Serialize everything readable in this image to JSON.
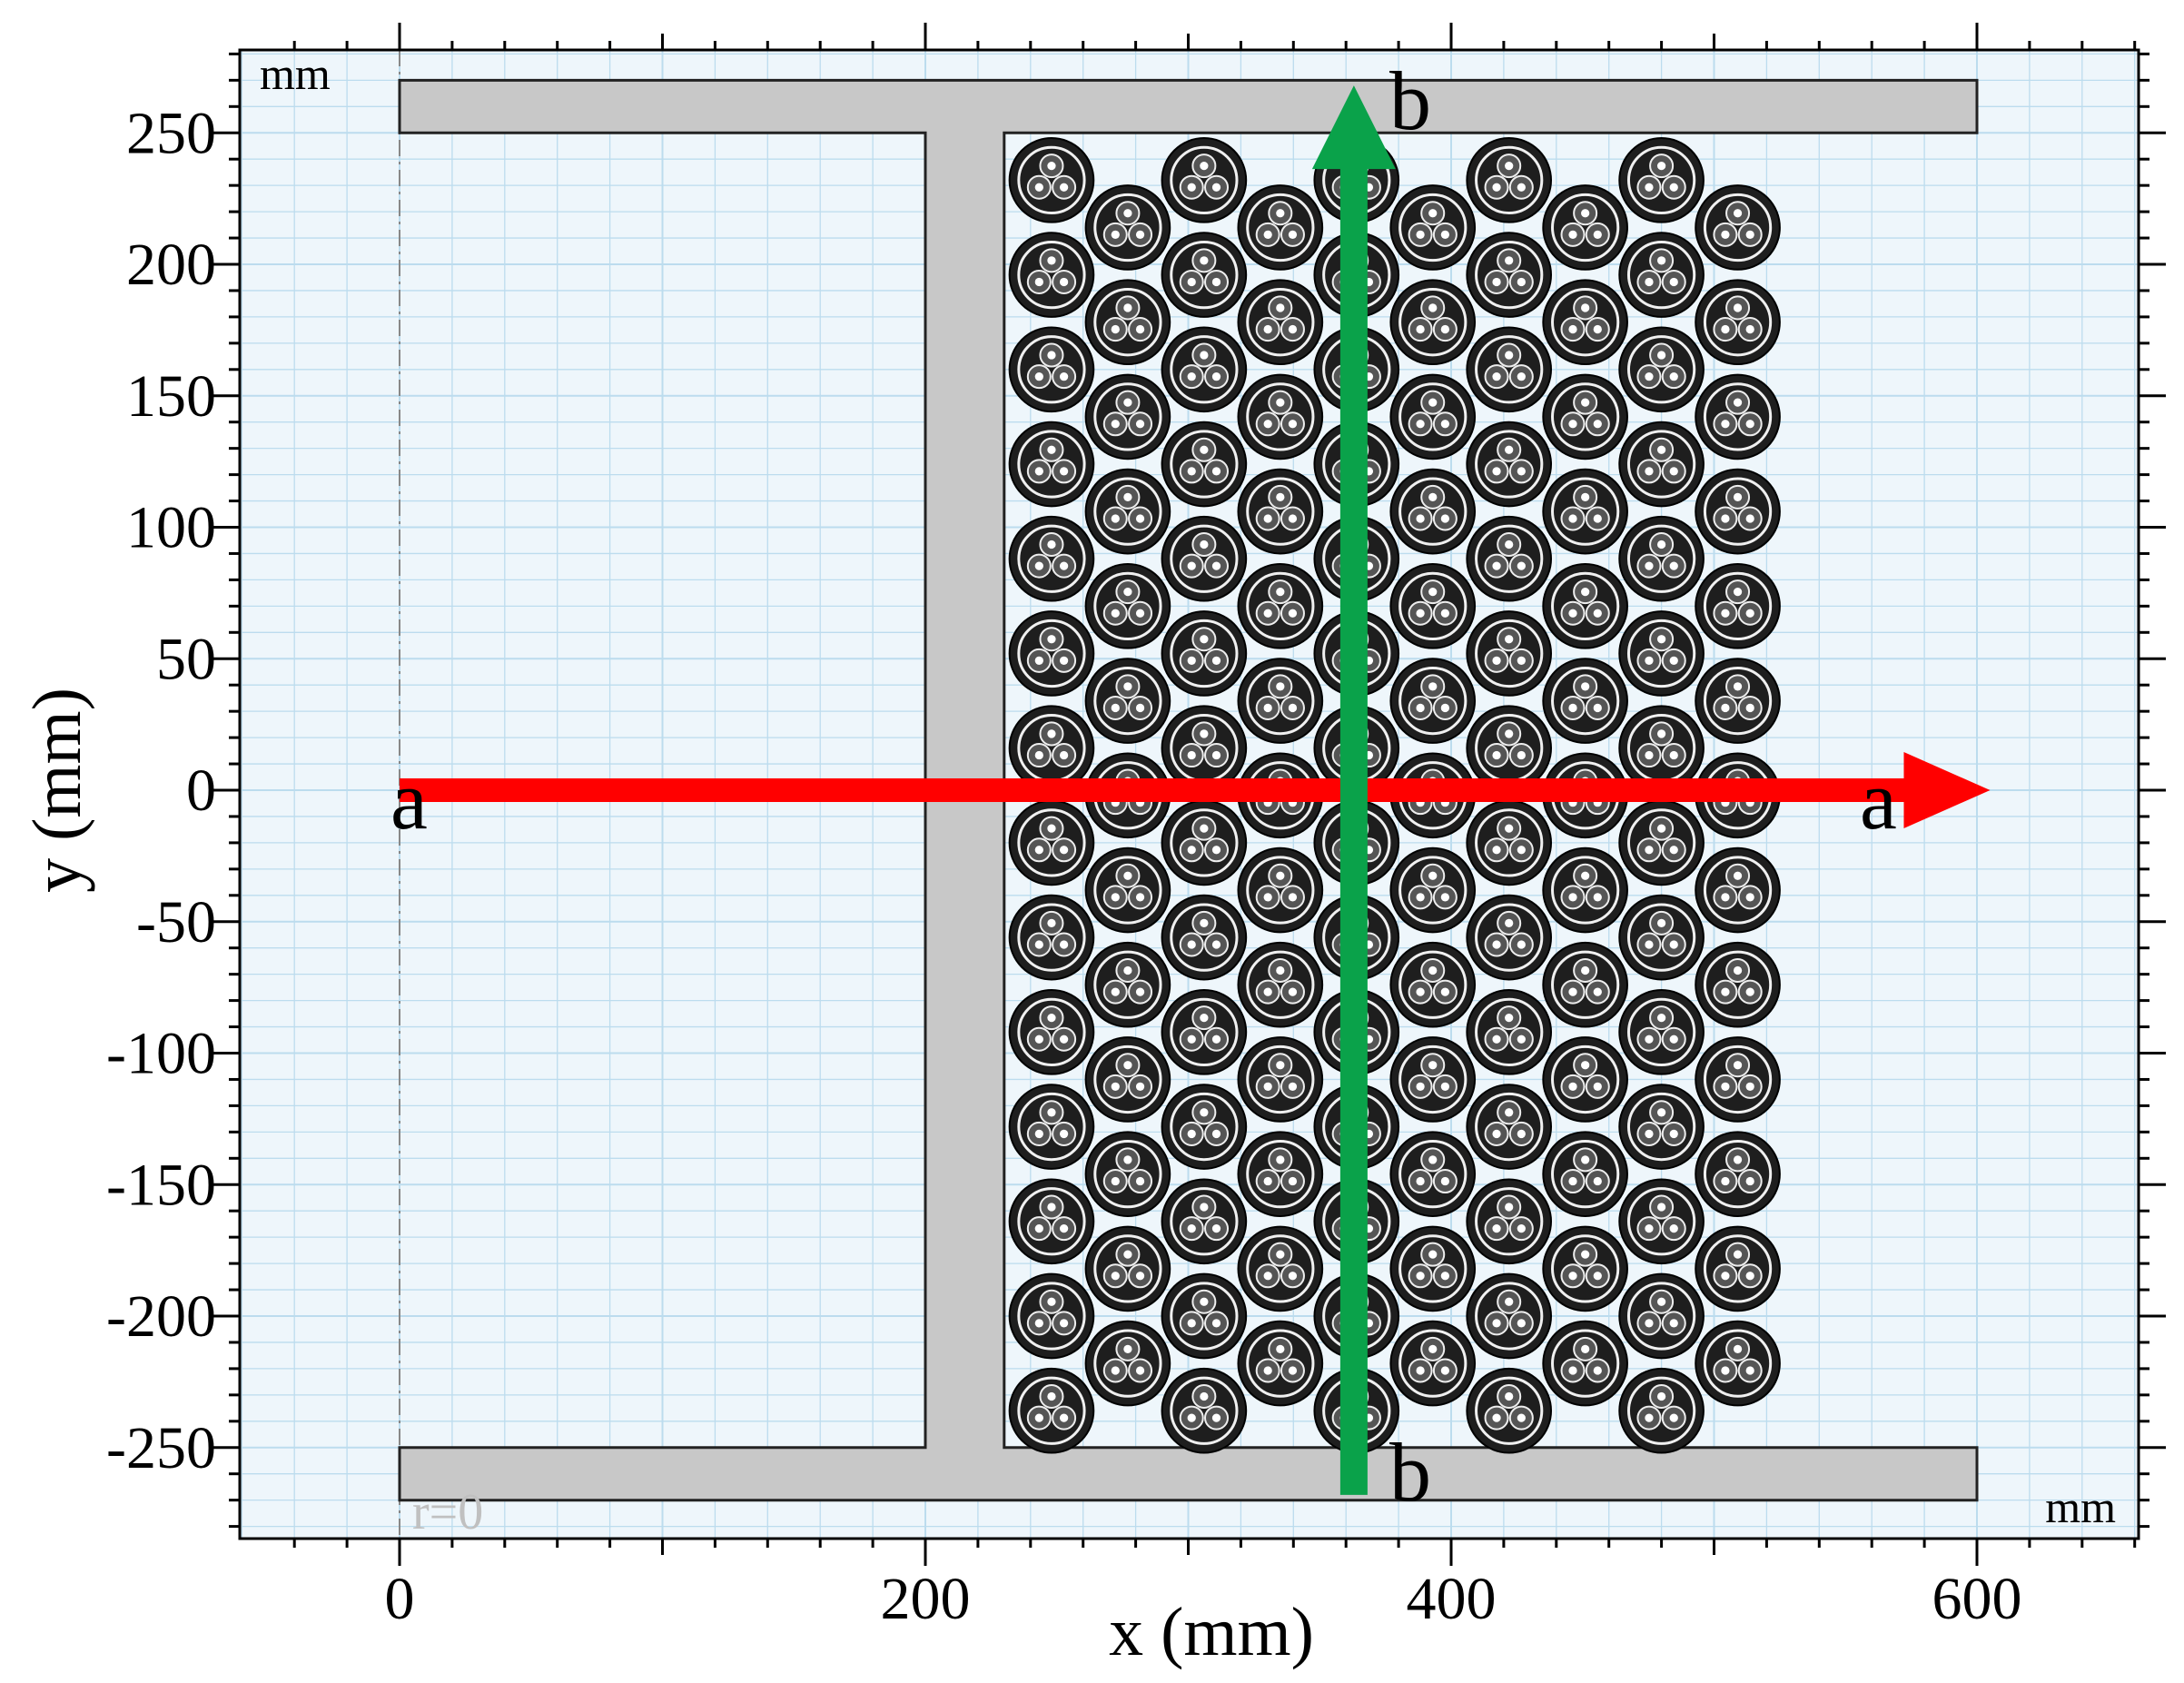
{
  "figure": {
    "x_axis_title": "x (mm)",
    "y_axis_title": "y (mm)",
    "unit_top_left": "mm",
    "unit_bottom_right": "mm",
    "origin_marker": "r=0",
    "x_ticks": [
      "0",
      "200",
      "400",
      "600"
    ],
    "y_ticks": [
      "250",
      "200",
      "150",
      "100",
      "50",
      "0",
      "-50",
      "-100",
      "-150",
      "-200",
      "-250"
    ],
    "x_range": [
      -60,
      660
    ],
    "y_range": [
      -283,
      285
    ],
    "line_a_label": "a",
    "line_b_label": "b",
    "colors": {
      "background": "#eef6fb",
      "grid": "#bcdcee",
      "steel": "#c8c8c8",
      "cable": "#1e1e1e",
      "line_a": "#ff0000",
      "line_b": "#0aa24a"
    }
  },
  "geometry_mm": {
    "flange_top": {
      "x0": 0,
      "x1": 600,
      "y0": 250,
      "y1": 270
    },
    "flange_bottom": {
      "x0": 0,
      "x1": 600,
      "y0": -270,
      "y1": -250
    },
    "web": {
      "x0": 200,
      "x1": 230,
      "y0": -250,
      "y1": 250
    },
    "cable_columns_x": [
      248,
      277,
      306,
      335,
      364,
      393,
      422,
      451,
      480,
      509
    ],
    "cable_radius": 16,
    "line_a": {
      "from": [
        0,
        0
      ],
      "to": [
        605,
        0
      ]
    },
    "line_b": {
      "from": [
        363,
        -268
      ],
      "to": [
        363,
        268
      ]
    }
  }
}
